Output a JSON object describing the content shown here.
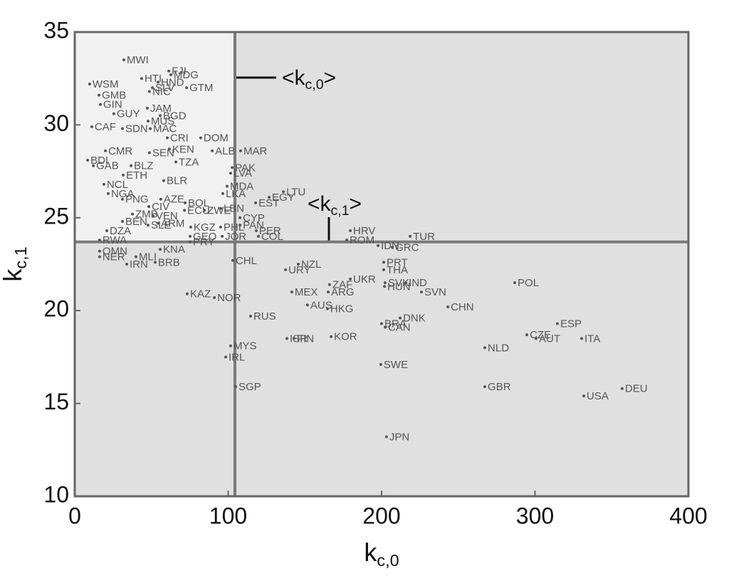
{
  "chart_data": {
    "type": "scatter",
    "xlabel": {
      "text": "k",
      "subscript": "c,0"
    },
    "ylabel": {
      "text": "k",
      "subscript": "c,1"
    },
    "xlim": [
      0,
      400
    ],
    "xticks": [
      0,
      100,
      200,
      300,
      400
    ],
    "ylim": [
      10,
      35
    ],
    "yticks": [
      10,
      15,
      20,
      25,
      30,
      35
    ],
    "mean_x": 104.4,
    "mean_y": 23.7,
    "annotations": [
      {
        "text": "<k",
        "subscript": "c,0",
        "closing": ">"
      },
      {
        "text": "<k",
        "subscript": "c,1",
        "closing": ">"
      }
    ],
    "color": "#555555",
    "labels": [
      "MWI",
      "FJI",
      "MDG",
      "WSM",
      "HTI",
      "HND",
      "SLV",
      "GTM",
      "NIC",
      "GMB",
      "GIN",
      "JAM",
      "GUY",
      "BGD",
      "MUS",
      "CAF",
      "SDN",
      "MAC",
      "DOM",
      "CRI",
      "KEN",
      "CMR",
      "ALB",
      "MAR",
      "SEN",
      "TZA",
      "BDI",
      "GAB",
      "BLZ",
      "PAK",
      "LVA",
      "ETH",
      "BLR",
      "NCL",
      "MDA",
      "LTU",
      "NGA",
      "LKA",
      "EGY",
      "PNG",
      "AZE",
      "BOL",
      "EST",
      "CIV",
      "ECU",
      "LBN",
      "ZWE",
      "CYP",
      "ZMB",
      "VEN",
      "BEN",
      "SLE",
      "ARM",
      "PAN",
      "KGZ",
      "PHL",
      "DZA",
      "PER",
      "HRV",
      "TUR",
      "GEO",
      "JOR",
      "COL",
      "RWA",
      "PRY",
      "ROM",
      "IDN",
      "GRC",
      "OMN",
      "KNA",
      "MLI",
      "NER",
      "BRB",
      "IRN",
      "CHL",
      "NZL",
      "PRT",
      "URY",
      "THA",
      "UKR",
      "POL",
      "ZAF",
      "SVK",
      "IND",
      "ARG",
      "HUN",
      "SVN",
      "MEX",
      "KAZ",
      "NOR",
      "AUS",
      "HKG",
      "CHN",
      "RUS",
      "DNK",
      "BRA",
      "ESP",
      "CZE",
      "CAN",
      "ISR",
      "FIN",
      "KOR",
      "AUT",
      "ITA",
      "MYS",
      "NLD",
      "IRL",
      "SWE",
      "SGP",
      "GBR",
      "DEU",
      "USA",
      "JPN"
    ],
    "x": [
      32,
      61.3,
      62.6,
      9.7,
      43.6,
      54.3,
      50.6,
      72.9,
      48.7,
      15.8,
      16.7,
      47.3,
      25.5,
      55.7,
      47.8,
      11.1,
      31.1,
      49.2,
      82.1,
      60.3,
      61.7,
      20,
      89.6,
      108.1,
      48.7,
      65.9,
      8.4,
      12.1,
      36.7,
      102.6,
      101.6,
      31.6,
      58,
      19,
      99.3,
      136,
      21.8,
      96.5,
      126.7,
      31.1,
      56.1,
      71.9,
      117.9,
      48.3,
      71.5,
      95.1,
      84.5,
      107.7,
      37.6,
      51,
      31.1,
      47.8,
      54.3,
      107.7,
      75.6,
      95.1,
      20.9,
      118.3,
      179.6,
      218.6,
      75.2,
      96.1,
      119.7,
      16.2,
      75.2,
      177.3,
      197.7,
      207,
      16.2,
      55.7,
      39.9,
      16.2,
      52.4,
      33.9,
      103,
      145.7,
      201.4,
      137.4,
      201.4,
      179.6,
      286.8,
      166.1,
      202.3,
      215.8,
      165.2,
      201.9,
      226,
      141.5,
      73.3,
      91,
      151.7,
      164.7,
      243.2,
      114.6,
      212.1,
      200,
      314.6,
      294.7,
      202.3,
      138.3,
      142.9,
      167.1,
      300.7,
      330.4,
      101.6,
      267.3,
      98.4,
      199.5,
      104.9,
      267.3,
      356.8,
      331.8,
      203.2
    ],
    "y": [
      33.5,
      32.9,
      32.7,
      32.2,
      32.5,
      32.3,
      32,
      32,
      31.8,
      31.6,
      31.1,
      30.9,
      30.6,
      30.5,
      30.2,
      29.9,
      29.8,
      29.8,
      29.3,
      29.3,
      28.7,
      28.6,
      28.6,
      28.6,
      28.5,
      28,
      28.1,
      27.8,
      27.8,
      27.7,
      27.4,
      27.3,
      27,
      26.8,
      26.7,
      26.4,
      26.3,
      26.3,
      26.1,
      26,
      26,
      25.8,
      25.8,
      25.6,
      25.4,
      25.5,
      25.4,
      25,
      25.2,
      25.1,
      24.8,
      24.6,
      24.7,
      24.6,
      24.5,
      24.5,
      24.3,
      24.3,
      24.3,
      24,
      24,
      24,
      24,
      23.8,
      23.7,
      23.8,
      23.5,
      23.4,
      23.2,
      23.3,
      22.9,
      22.9,
      22.6,
      22.5,
      22.7,
      22.5,
      22.6,
      22.2,
      22.2,
      21.7,
      21.5,
      21.4,
      21.5,
      21.5,
      21,
      21.3,
      21,
      21,
      20.9,
      20.7,
      20.3,
      20.1,
      20.2,
      19.7,
      19.6,
      19.3,
      19.3,
      18.7,
      19.1,
      18.5,
      18.5,
      18.6,
      18.5,
      18.5,
      18.1,
      18,
      17.5,
      17.1,
      15.9,
      15.9,
      15.8,
      15.4,
      13.2
    ]
  }
}
